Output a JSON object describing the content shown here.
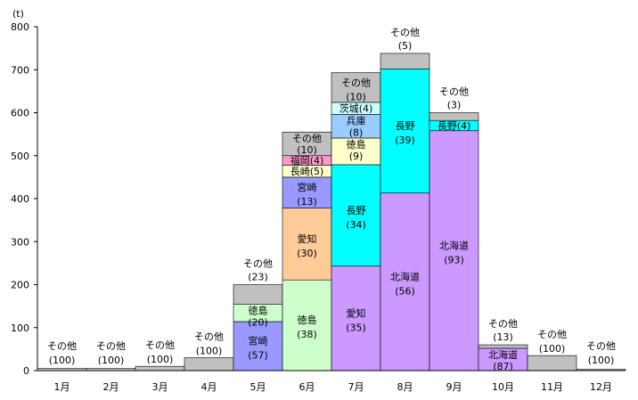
{
  "chart_data": {
    "type": "bar",
    "subtype": "stacked-marimekko",
    "yunit": "(t)",
    "ylim": [
      0,
      800
    ],
    "yticks": [
      0,
      100,
      200,
      300,
      400,
      500,
      600,
      700,
      800
    ],
    "grid": false,
    "months": [
      {
        "label": "1月",
        "total": 5,
        "segments": [
          {
            "name": "その他",
            "share": "(100)",
            "value": 5,
            "color": "#c0c0c0"
          }
        ]
      },
      {
        "label": "2月",
        "total": 5,
        "segments": [
          {
            "name": "その他",
            "share": "(100)",
            "value": 5,
            "color": "#c0c0c0"
          }
        ]
      },
      {
        "label": "3月",
        "total": 10,
        "segments": [
          {
            "name": "その他",
            "share": "(100)",
            "value": 10,
            "color": "#c0c0c0"
          }
        ]
      },
      {
        "label": "4月",
        "total": 30,
        "segments": [
          {
            "name": "その他",
            "share": "(100)",
            "value": 30,
            "color": "#c0c0c0"
          }
        ]
      },
      {
        "label": "5月",
        "total": 200,
        "segments": [
          {
            "name": "宮崎",
            "share": "(57)",
            "value": 114,
            "color": "#9999ff"
          },
          {
            "name": "徳島",
            "share": "(20)",
            "value": 40,
            "color": "#ccffcc"
          },
          {
            "name": "その他",
            "share": "(23)",
            "value": 46,
            "color": "#c0c0c0"
          }
        ]
      },
      {
        "label": "6月",
        "total": 555,
        "segments": [
          {
            "name": "徳島",
            "share": "(38)",
            "value": 211,
            "color": "#ccffcc"
          },
          {
            "name": "愛知",
            "share": "(30)",
            "value": 167,
            "color": "#ffcc99"
          },
          {
            "name": "宮崎",
            "share": "(13)",
            "value": 72,
            "color": "#9999ff"
          },
          {
            "name": "長崎",
            "share": "(5)",
            "value": 28,
            "color": "#ffffcc"
          },
          {
            "name": "福岡",
            "share": "(4)",
            "value": 22,
            "color": "#ff99cc"
          },
          {
            "name": "その他",
            "share": "(10)",
            "value": 55,
            "color": "#c0c0c0"
          }
        ]
      },
      {
        "label": "7月",
        "total": 693,
        "segments": [
          {
            "name": "愛知",
            "share": "(35)",
            "value": 243,
            "color": "#cc99ff"
          },
          {
            "name": "長野",
            "share": "(34)",
            "value": 236,
            "color": "#00ffff"
          },
          {
            "name": "徳島",
            "share": "(9)",
            "value": 62,
            "color": "#ffffcc"
          },
          {
            "name": "兵庫",
            "share": "(8)",
            "value": 55,
            "color": "#99ccff"
          },
          {
            "name": "茨城",
            "share": "(4)",
            "value": 28,
            "color": "#ccffff"
          },
          {
            "name": "その他",
            "share": "(10)",
            "value": 69,
            "color": "#c0c0c0"
          }
        ]
      },
      {
        "label": "8月",
        "total": 738,
        "segments": [
          {
            "name": "北海道",
            "share": "(56)",
            "value": 413,
            "color": "#cc99ff"
          },
          {
            "name": "長野",
            "share": "(39)",
            "value": 289,
            "color": "#00ffff"
          },
          {
            "name": "その他",
            "share": "(5)",
            "value": 36,
            "color": "#c0c0c0"
          }
        ]
      },
      {
        "label": "9月",
        "total": 600,
        "segments": [
          {
            "name": "北海道",
            "share": "(93)",
            "value": 558,
            "color": "#cc99ff"
          },
          {
            "name": "長野",
            "share": "(4)",
            "value": 24,
            "color": "#00ffff"
          },
          {
            "name": "その他",
            "share": "(3)",
            "value": 18,
            "color": "#c0c0c0"
          }
        ]
      },
      {
        "label": "10月",
        "total": 60,
        "segments": [
          {
            "name": "北海道",
            "share": "(87)",
            "value": 52,
            "color": "#cc99ff"
          },
          {
            "name": "その他",
            "share": "(13)",
            "value": 8,
            "color": "#c0c0c0"
          }
        ]
      },
      {
        "label": "11月",
        "total": 35,
        "segments": [
          {
            "name": "その他",
            "share": "(100)",
            "value": 35,
            "color": "#c0c0c0"
          }
        ]
      },
      {
        "label": "12月",
        "total": 3,
        "segments": [
          {
            "name": "その他",
            "share": "(100)",
            "value": 3,
            "color": "#c0c0c0"
          }
        ]
      }
    ]
  }
}
